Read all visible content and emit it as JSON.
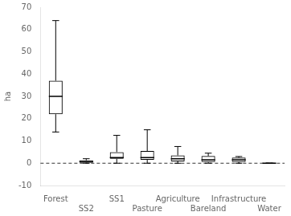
{
  "chart_data": {
    "type": "box",
    "y_label": "ha",
    "categories": [
      "Forest",
      "SS2",
      "SS1",
      "Pasture",
      "Agriculture",
      "Bareland",
      "Infrastructure",
      "Water"
    ],
    "boxes": [
      {
        "q1": 22,
        "median": 30,
        "q3": 37,
        "whislo": 14,
        "whishi": 64
      },
      {
        "q1": 0.2,
        "median": 0.8,
        "q3": 1.3,
        "whislo": 0,
        "whishi": 2.0
      },
      {
        "q1": 2.0,
        "median": 2.5,
        "q3": 5.0,
        "whislo": 0,
        "whishi": 12.5
      },
      {
        "q1": 1.5,
        "median": 2.5,
        "q3": 5.5,
        "whislo": 0,
        "whishi": 15.0
      },
      {
        "q1": 0.8,
        "median": 2.0,
        "q3": 3.5,
        "whislo": 0,
        "whishi": 7.5
      },
      {
        "q1": 0.5,
        "median": 1.5,
        "q3": 3.2,
        "whislo": 0,
        "whishi": 4.5
      },
      {
        "q1": 0.5,
        "median": 1.5,
        "q3": 2.5,
        "whislo": 0,
        "whishi": 3.0
      },
      {
        "q1": 0.0,
        "median": 0.0,
        "q3": 0.0,
        "whislo": 0,
        "whishi": 0.0
      }
    ],
    "hlines": [
      0
    ],
    "color": "#000000",
    "ylim": [
      -10,
      70
    ],
    "yticks": [
      -10,
      0,
      10,
      20,
      30,
      40,
      50,
      60,
      70
    ],
    "grid": false
  }
}
